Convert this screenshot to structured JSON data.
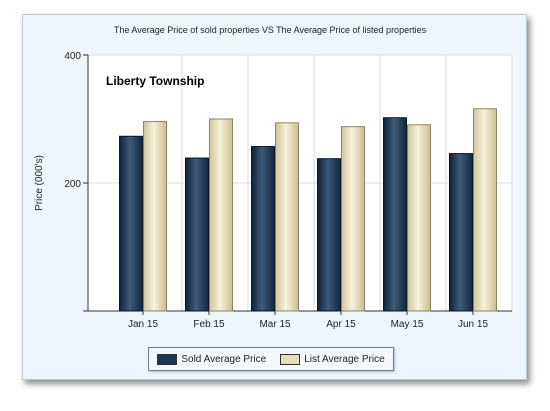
{
  "chart_data": {
    "type": "bar",
    "title": "The Average Price of sold properties VS The Average Price of listed properties",
    "annotation": "Liberty Township",
    "ylabel": "Price (000's)",
    "xlabel": "",
    "ylim": [
      0,
      400
    ],
    "yticks": [
      200,
      400
    ],
    "categories": [
      "Jan 15",
      "Feb 15",
      "Mar 15",
      "Apr 15",
      "May 15",
      "Jun 15"
    ],
    "series": [
      {
        "name": "Sold Average Price",
        "values": [
          273,
          239,
          257,
          238,
          302,
          246
        ],
        "color": "#1d3552"
      },
      {
        "name": "List Average Price",
        "values": [
          296,
          300,
          294,
          288,
          291,
          316
        ],
        "color": "#e6dfbd"
      }
    ],
    "grid": true,
    "legend_position": "bottom"
  }
}
